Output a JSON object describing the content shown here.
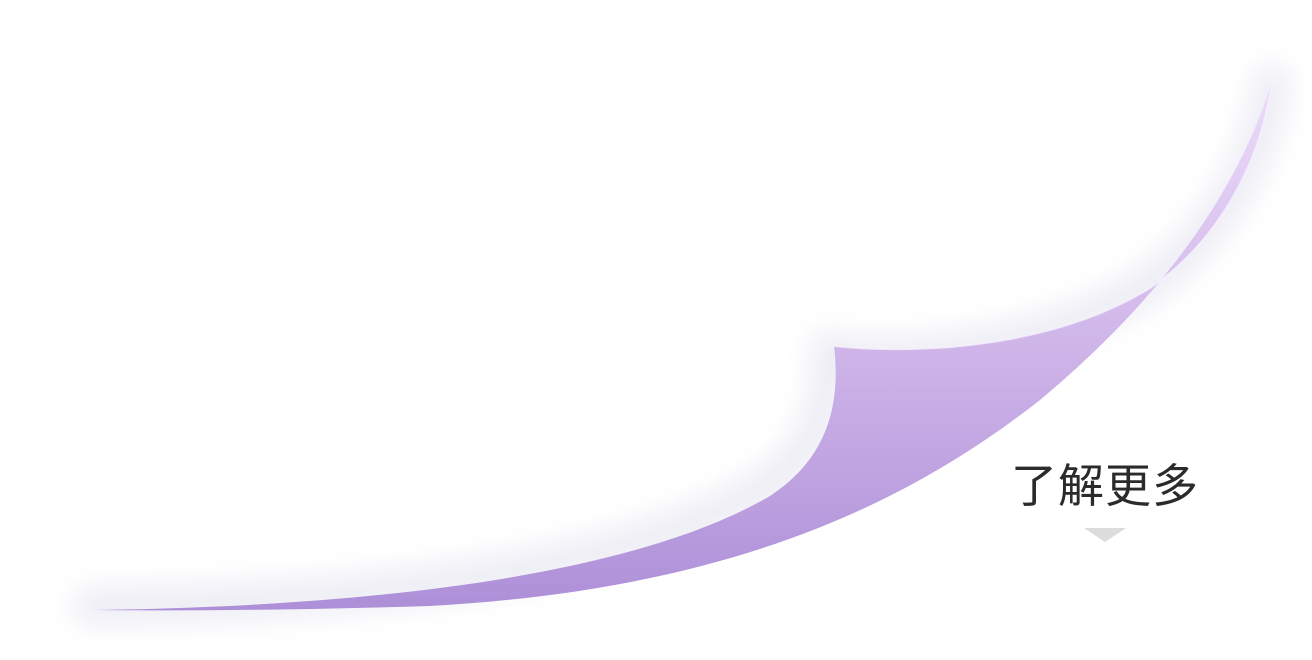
{
  "learn_more": {
    "label": "了解更多",
    "icon": "chevron-down-icon"
  },
  "colors": {
    "accent_top": "#e6d2f6",
    "accent_bottom": "#b396db",
    "page_background": "#ffffff",
    "paper_shadow": "#eeeef6",
    "label_text": "#2b2b2b",
    "chevron": "#dcdcdc"
  }
}
